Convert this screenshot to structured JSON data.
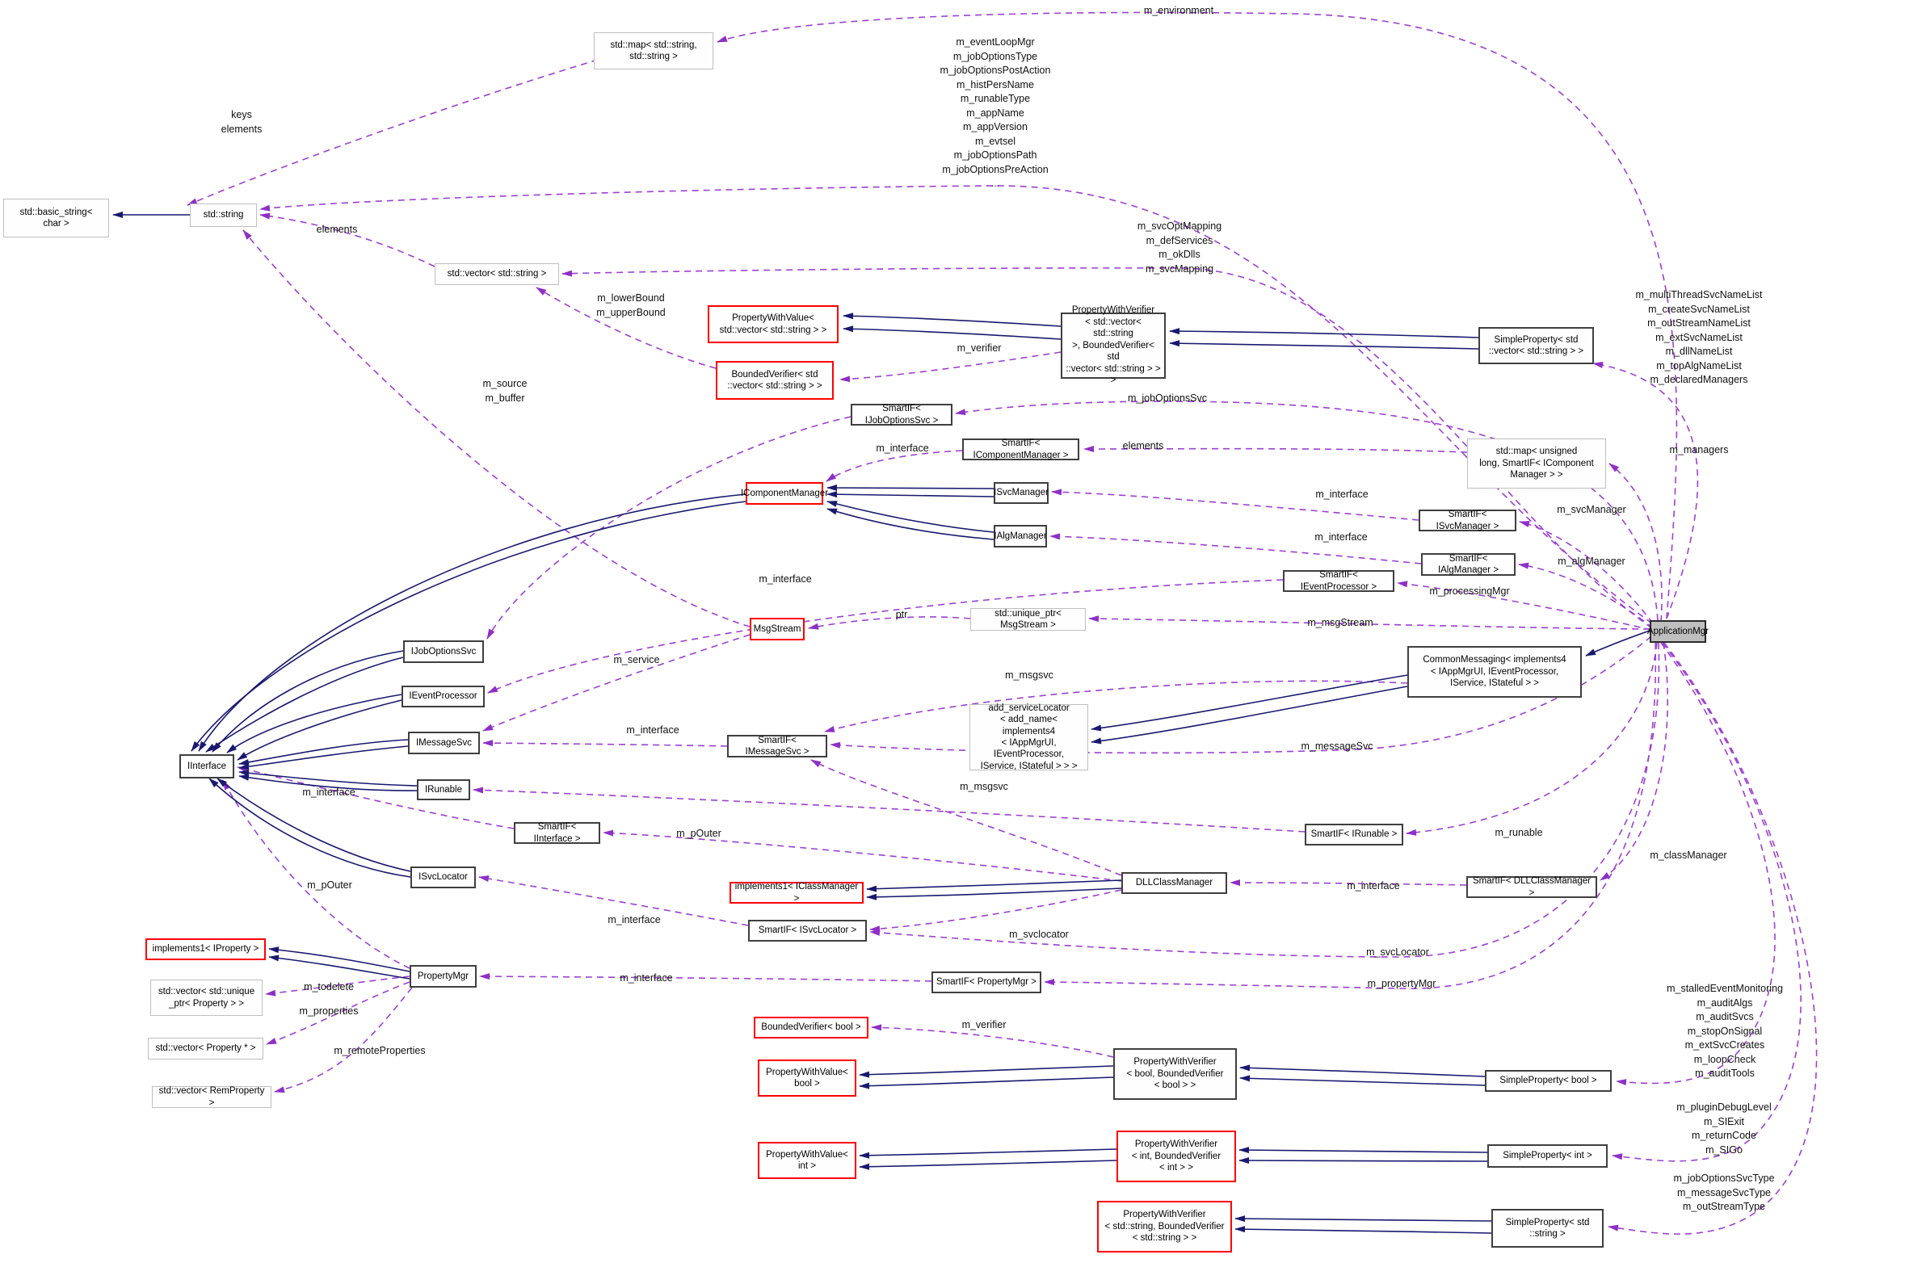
{
  "diagram": {
    "type": "class-collaboration-graph",
    "colors": {
      "inheritance_edge": "#191970",
      "usage_edge": "#9d3fd3",
      "usage_arrowhead": "#8e2fc7",
      "current_node_fill": "#bfbfbf",
      "truncated_node_border": "#ff0000",
      "external_node_border": "#bfbfbf",
      "node_border": "#3f3f3f"
    },
    "nodes": [
      {
        "id": "basic_string",
        "label": "std::basic_string<\nchar >",
        "style": "ref"
      },
      {
        "id": "std_string",
        "label": "std::string",
        "style": "ref"
      },
      {
        "id": "map_ss",
        "label": "std::map< std::string,\nstd::string >",
        "style": "ref"
      },
      {
        "id": "vector_s",
        "label": "std::vector< std::string >",
        "style": "ref"
      },
      {
        "id": "pwv_vec",
        "label": "PropertyWithValue<\nstd::vector< std::string > >",
        "style": "truncated"
      },
      {
        "id": "bv_vec",
        "label": "BoundedVerifier< std\n::vector< std::string > >",
        "style": "truncated"
      },
      {
        "id": "pwvf_vec",
        "label": "PropertyWithVerifier\n< std::vector< std::string\n>, BoundedVerifier< std\n::vector< std::string > > >",
        "style": "class"
      },
      {
        "id": "sp_vec",
        "label": "SimpleProperty< std\n::vector< std::string > >",
        "style": "class"
      },
      {
        "id": "si_jos",
        "label": "SmartIF< IJobOptionsSvc >",
        "style": "class"
      },
      {
        "id": "si_cm",
        "label": "SmartIF< IComponentManager >",
        "style": "class"
      },
      {
        "id": "icm",
        "label": "IComponentManager",
        "style": "truncated"
      },
      {
        "id": "isvcm",
        "label": "ISvcManager",
        "style": "class"
      },
      {
        "id": "ialgm",
        "label": "IAlgManager",
        "style": "class"
      },
      {
        "id": "map_ul",
        "label": "std::map< unsigned\nlong, SmartIF< IComponent\nManager > >",
        "style": "ref"
      },
      {
        "id": "si_svcm",
        "label": "SmartIF< ISvcManager >",
        "style": "class"
      },
      {
        "id": "si_algm",
        "label": "SmartIF< IAlgManager >",
        "style": "class"
      },
      {
        "id": "si_ep",
        "label": "SmartIF< IEventProcessor >",
        "style": "class"
      },
      {
        "id": "msgstream",
        "label": "MsgStream",
        "style": "truncated"
      },
      {
        "id": "uptr_ms",
        "label": "std::unique_ptr< MsgStream >",
        "style": "ref"
      },
      {
        "id": "common",
        "label": "CommonMessaging< implements4\n< IAppMgrUI, IEventProcessor,\nIService, IStateful > >",
        "style": "class"
      },
      {
        "id": "addsvc",
        "label": "add_serviceLocator\n< add_name< implements4\n< IAppMgrUI, IEventProcessor,\nIService, IStateful > > >",
        "style": "ref"
      },
      {
        "id": "si_msg",
        "label": "SmartIF< IMessageSvc >",
        "style": "class"
      },
      {
        "id": "ijos",
        "label": "IJobOptionsSvc",
        "style": "class"
      },
      {
        "id": "iep",
        "label": "IEventProcessor",
        "style": "class"
      },
      {
        "id": "imsg",
        "label": "IMessageSvc",
        "style": "class"
      },
      {
        "id": "iif",
        "label": "IInterface",
        "style": "class"
      },
      {
        "id": "irun",
        "label": "IRunable",
        "style": "class"
      },
      {
        "id": "si_if",
        "label": "SmartIF< IInterface >",
        "style": "class"
      },
      {
        "id": "isvcloc",
        "label": "ISvcLocator",
        "style": "class"
      },
      {
        "id": "pmgr",
        "label": "PropertyMgr",
        "style": "class"
      },
      {
        "id": "impl_prop",
        "label": "implements1< IProperty >",
        "style": "truncated"
      },
      {
        "id": "vec_uptr",
        "label": "std::vector< std::unique\n_ptr< Property > >",
        "style": "ref"
      },
      {
        "id": "vec_pstar",
        "label": "std::vector< Property * >",
        "style": "ref"
      },
      {
        "id": "vec_rem",
        "label": "std::vector< RemProperty >",
        "style": "ref"
      },
      {
        "id": "dllcm",
        "label": "DLLClassManager",
        "style": "class"
      },
      {
        "id": "impl_icm",
        "label": "implements1< IClassManager >",
        "style": "truncated"
      },
      {
        "id": "si_svcloc",
        "label": "SmartIF< ISvcLocator >",
        "style": "class"
      },
      {
        "id": "si_dllcm",
        "label": "SmartIF< DLLClassManager >",
        "style": "class"
      },
      {
        "id": "si_run",
        "label": "SmartIF< IRunable >",
        "style": "class"
      },
      {
        "id": "si_pmgr",
        "label": "SmartIF< PropertyMgr >",
        "style": "class"
      },
      {
        "id": "bv_bool",
        "label": "BoundedVerifier< bool >",
        "style": "truncated"
      },
      {
        "id": "pwv_bool",
        "label": "PropertyWithValue<\nbool >",
        "style": "truncated"
      },
      {
        "id": "pwvf_bool",
        "label": "PropertyWithVerifier\n< bool, BoundedVerifier\n< bool > >",
        "style": "class"
      },
      {
        "id": "sp_bool",
        "label": "SimpleProperty< bool >",
        "style": "class"
      },
      {
        "id": "pwv_int",
        "label": "PropertyWithValue<\nint >",
        "style": "truncated"
      },
      {
        "id": "pwvf_int",
        "label": "PropertyWithVerifier\n< int, BoundedVerifier\n< int > >",
        "style": "truncated"
      },
      {
        "id": "sp_int",
        "label": "SimpleProperty< int >",
        "style": "class"
      },
      {
        "id": "pwvf_str",
        "label": "PropertyWithVerifier\n< std::string, BoundedVerifier\n< std::string > >",
        "style": "truncated"
      },
      {
        "id": "sp_str",
        "label": "SimpleProperty< std\n::string >",
        "style": "class"
      },
      {
        "id": "appmgr",
        "label": "ApplicationMgr",
        "style": "current"
      }
    ],
    "edge_labels": [
      {
        "id": "keys_elements",
        "text": "keys\nelements"
      },
      {
        "id": "environment",
        "text": "m_environment"
      },
      {
        "id": "app_string_members",
        "text": "m_eventLoopMgr\nm_jobOptionsType\nm_jobOptionsPostAction\nm_histPersName\nm_runableType\nm_appName\nm_appVersion\nm_evtsel\nm_jobOptionsPath\nm_jobOptionsPreAction\n..."
      },
      {
        "id": "elements_vs",
        "text": "elements"
      },
      {
        "id": "svc_mappings",
        "text": "m_svcOptMapping\nm_defServices\nm_okDlls\nm_svcMapping"
      },
      {
        "id": "bounds",
        "text": "m_lowerBound\nm_upperBound"
      },
      {
        "id": "verifier_vec",
        "text": "m_verifier"
      },
      {
        "id": "source_buffer",
        "text": "m_source\nm_buffer"
      },
      {
        "id": "name_lists",
        "text": "m_multiThreadSvcNameList\nm_createSvcNameList\nm_outStreamNameList\nm_extSvcNameList\nm_dllNameList\nm_topAlgNameList\nm_declaredManagers"
      },
      {
        "id": "job_options_svc",
        "text": "m_jobOptionsSvc"
      },
      {
        "id": "interface_cm",
        "text": "m_interface"
      },
      {
        "id": "elements_map",
        "text": "elements"
      },
      {
        "id": "managers",
        "text": "m_managers"
      },
      {
        "id": "interface_svcm",
        "text": "m_interface"
      },
      {
        "id": "svc_manager",
        "text": "m_svcManager"
      },
      {
        "id": "interface_algm",
        "text": "m_interface"
      },
      {
        "id": "alg_manager",
        "text": "m_algManager"
      },
      {
        "id": "interface_ep",
        "text": "m_interface"
      },
      {
        "id": "processing_mgr",
        "text": "m_processingMgr"
      },
      {
        "id": "ptr",
        "text": "ptr"
      },
      {
        "id": "msg_stream",
        "text": "m_msgStream"
      },
      {
        "id": "msgsvc_cm",
        "text": "m_msgsvc"
      },
      {
        "id": "service",
        "text": "m_service"
      },
      {
        "id": "interface_msg",
        "text": "m_interface"
      },
      {
        "id": "message_svc",
        "text": "m_messageSvc"
      },
      {
        "id": "msgsvc_dll",
        "text": "m_msgsvc"
      },
      {
        "id": "interface_si_if",
        "text": "m_interface"
      },
      {
        "id": "runable",
        "text": "m_runable"
      },
      {
        "id": "pouter_dll",
        "text": "m_pOuter"
      },
      {
        "id": "class_manager",
        "text": "m_classManager"
      },
      {
        "id": "interface_dll",
        "text": "m_interface"
      },
      {
        "id": "svclocator_dll",
        "text": "m_svclocator"
      },
      {
        "id": "interface_svcloc",
        "text": "m_interface"
      },
      {
        "id": "pouter_pmgr",
        "text": "m_pOuter"
      },
      {
        "id": "svc_locator_app",
        "text": "m_svcLocator"
      },
      {
        "id": "interface_pmgr",
        "text": "m_interface"
      },
      {
        "id": "property_mgr",
        "text": "m_propertyMgr"
      },
      {
        "id": "todelete",
        "text": "m_todelete"
      },
      {
        "id": "properties",
        "text": "m_properties"
      },
      {
        "id": "remote_properties",
        "text": "m_remoteProperties"
      },
      {
        "id": "verifier_bool",
        "text": "m_verifier"
      },
      {
        "id": "bool_members",
        "text": "m_stalledEventMonitoring\nm_auditAlgs\nm_auditSvcs\nm_stopOnSignal\nm_extSvcCreates\nm_loopCheck\nm_auditTools"
      },
      {
        "id": "int_members",
        "text": "m_pluginDebugLevel\nm_SIExit\nm_returnCode\nm_SIGo"
      },
      {
        "id": "string_members",
        "text": "m_jobOptionsSvcType\nm_messageSvcType\nm_outStreamType"
      }
    ]
  }
}
